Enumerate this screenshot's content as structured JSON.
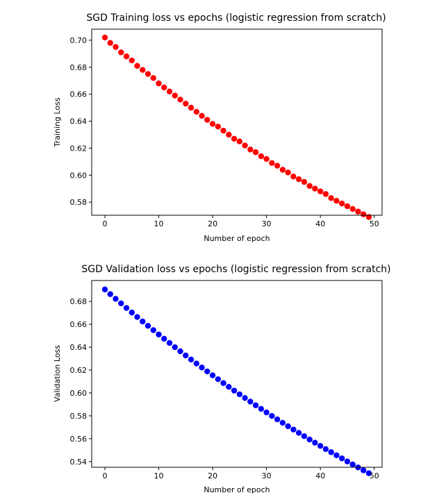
{
  "chart_data": [
    {
      "type": "scatter",
      "title": "SGD Training loss vs epochs (logistic regression from scratch)",
      "xlabel": "Number of epoch",
      "ylabel": "Training Loss",
      "color": "#ff0000",
      "xlim": [
        -2.45,
        51.45
      ],
      "ylim": [
        0.5703,
        0.7082
      ],
      "xticks": [
        0,
        10,
        20,
        30,
        40,
        50
      ],
      "yticks": [
        0.58,
        0.6,
        0.62,
        0.64,
        0.66,
        0.68,
        0.7
      ],
      "ytick_labels": [
        "0.58",
        "0.60",
        "0.62",
        "0.64",
        "0.66",
        "0.68",
        "0.70"
      ],
      "grid": false,
      "x": [
        0,
        1,
        2,
        3,
        4,
        5,
        6,
        7,
        8,
        9,
        10,
        11,
        12,
        13,
        14,
        15,
        16,
        17,
        18,
        19,
        20,
        21,
        22,
        23,
        24,
        25,
        26,
        27,
        28,
        29,
        30,
        31,
        32,
        33,
        34,
        35,
        36,
        37,
        38,
        39,
        40,
        41,
        42,
        43,
        44,
        45,
        46,
        47,
        48,
        49
      ],
      "y": [
        0.702,
        0.698,
        0.695,
        0.691,
        0.688,
        0.685,
        0.681,
        0.678,
        0.675,
        0.672,
        0.668,
        0.665,
        0.662,
        0.659,
        0.656,
        0.653,
        0.65,
        0.647,
        0.644,
        0.641,
        0.638,
        0.636,
        0.633,
        0.63,
        0.627,
        0.625,
        0.622,
        0.619,
        0.617,
        0.614,
        0.612,
        0.609,
        0.607,
        0.604,
        0.602,
        0.599,
        0.597,
        0.595,
        0.592,
        0.59,
        0.588,
        0.586,
        0.583,
        0.581,
        0.579,
        0.577,
        0.575,
        0.573,
        0.571,
        0.569
      ]
    },
    {
      "type": "scatter",
      "title": "SGD Validation loss vs epochs (logistic regression from scratch)",
      "xlabel": "Number of epoch",
      "ylabel": "Validation Loss",
      "color": "#0000ff",
      "xlim": [
        -2.45,
        51.45
      ],
      "ylim": [
        0.535,
        0.6983
      ],
      "xticks": [
        0,
        10,
        20,
        30,
        40,
        50
      ],
      "yticks": [
        0.54,
        0.56,
        0.58,
        0.6,
        0.62,
        0.64,
        0.66,
        0.68
      ],
      "ytick_labels": [
        "0.54",
        "0.56",
        "0.58",
        "0.60",
        "0.62",
        "0.64",
        "0.66",
        "0.68"
      ],
      "grid": false,
      "x": [
        0,
        1,
        2,
        3,
        4,
        5,
        6,
        7,
        8,
        9,
        10,
        11,
        12,
        13,
        14,
        15,
        16,
        17,
        18,
        19,
        20,
        21,
        22,
        23,
        24,
        25,
        26,
        27,
        28,
        29,
        30,
        31,
        32,
        33,
        34,
        35,
        36,
        37,
        38,
        39,
        40,
        41,
        42,
        43,
        44,
        45,
        46,
        47,
        48,
        49
      ],
      "y": [
        0.6905,
        0.6864,
        0.6823,
        0.6783,
        0.6743,
        0.6703,
        0.6664,
        0.6625,
        0.6587,
        0.6549,
        0.6511,
        0.6474,
        0.6437,
        0.64,
        0.6364,
        0.6328,
        0.6292,
        0.6257,
        0.6222,
        0.6188,
        0.6154,
        0.612,
        0.6086,
        0.6053,
        0.602,
        0.5988,
        0.5956,
        0.5924,
        0.5892,
        0.5861,
        0.583,
        0.5799,
        0.5769,
        0.5739,
        0.5709,
        0.568,
        0.5651,
        0.5622,
        0.5593,
        0.5565,
        0.5537,
        0.5509,
        0.5482,
        0.5455,
        0.5428,
        0.5401,
        0.5375,
        0.5349,
        0.5323,
        0.5298
      ]
    }
  ]
}
